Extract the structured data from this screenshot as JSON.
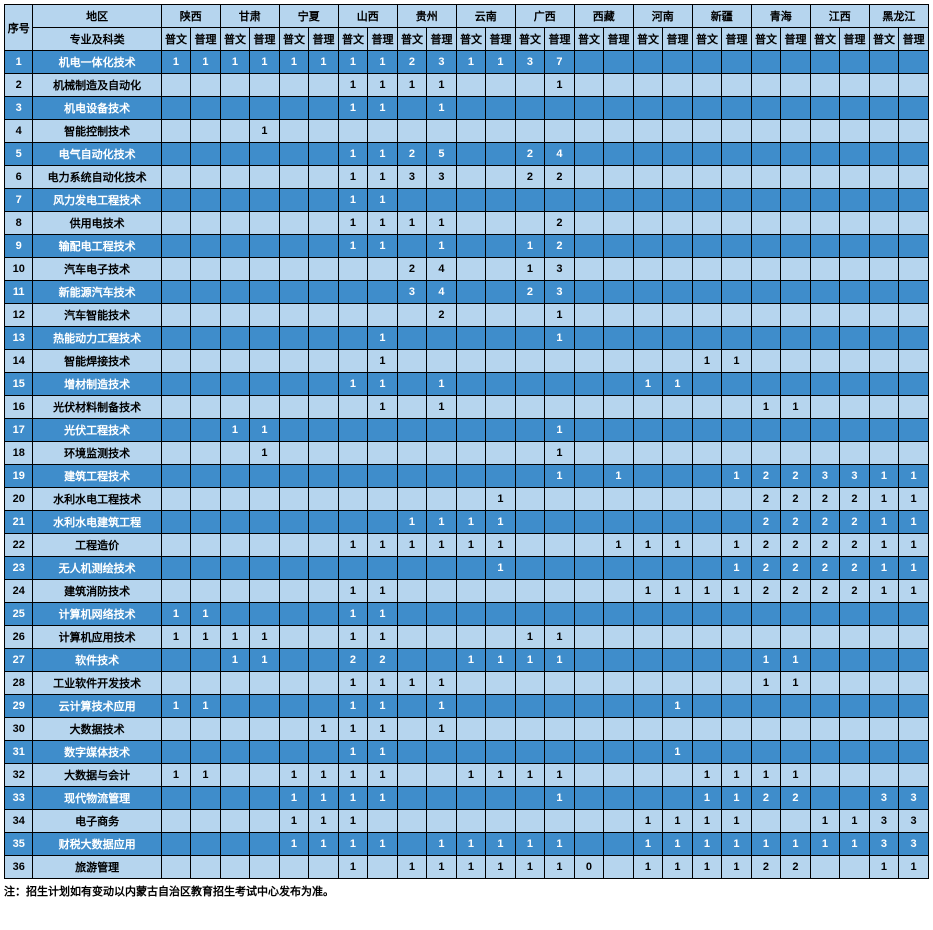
{
  "header": {
    "seq_label": "序号",
    "region_label": "地区",
    "major_label": "专业及科类",
    "sub_labels": [
      "普文",
      "普理"
    ],
    "regions": [
      "陕西",
      "甘肃",
      "宁夏",
      "山西",
      "贵州",
      "云南",
      "广西",
      "西藏",
      "河南",
      "新疆",
      "青海",
      "江西",
      "黑龙江"
    ]
  },
  "rows": [
    {
      "n": "1",
      "name": "机电一体化技术",
      "v": [
        "1",
        "1",
        "1",
        "1",
        "1",
        "1",
        "1",
        "1",
        "2",
        "3",
        "1",
        "1",
        "3",
        "7",
        "",
        "",
        "",
        "",
        "",
        "",
        "",
        "",
        "",
        "",
        "",
        ""
      ]
    },
    {
      "n": "2",
      "name": "机械制造及自动化",
      "v": [
        "",
        "",
        "",
        "",
        "",
        "",
        "1",
        "1",
        "1",
        "1",
        "",
        "",
        "",
        "1",
        "",
        "",
        "",
        "",
        "",
        "",
        "",
        "",
        "",
        "",
        "",
        ""
      ]
    },
    {
      "n": "3",
      "name": "机电设备技术",
      "v": [
        "",
        "",
        "",
        "",
        "",
        "",
        "1",
        "1",
        "",
        "1",
        "",
        "",
        "",
        "",
        "",
        "",
        "",
        "",
        "",
        "",
        "",
        "",
        "",
        "",
        "",
        ""
      ]
    },
    {
      "n": "4",
      "name": "智能控制技术",
      "v": [
        "",
        "",
        "",
        "1",
        "",
        "",
        "",
        "",
        "",
        "",
        "",
        "",
        "",
        "",
        "",
        "",
        "",
        "",
        "",
        "",
        "",
        "",
        "",
        "",
        "",
        ""
      ]
    },
    {
      "n": "5",
      "name": "电气自动化技术",
      "v": [
        "",
        "",
        "",
        "",
        "",
        "",
        "1",
        "1",
        "2",
        "5",
        "",
        "",
        "2",
        "4",
        "",
        "",
        "",
        "",
        "",
        "",
        "",
        "",
        "",
        "",
        "",
        ""
      ]
    },
    {
      "n": "6",
      "name": "电力系统自动化技术",
      "v": [
        "",
        "",
        "",
        "",
        "",
        "",
        "1",
        "1",
        "3",
        "3",
        "",
        "",
        "2",
        "2",
        "",
        "",
        "",
        "",
        "",
        "",
        "",
        "",
        "",
        "",
        "",
        ""
      ]
    },
    {
      "n": "7",
      "name": "风力发电工程技术",
      "v": [
        "",
        "",
        "",
        "",
        "",
        "",
        "1",
        "1",
        "",
        "",
        "",
        "",
        "",
        "",
        "",
        "",
        "",
        "",
        "",
        "",
        "",
        "",
        "",
        "",
        "",
        ""
      ]
    },
    {
      "n": "8",
      "name": "供用电技术",
      "v": [
        "",
        "",
        "",
        "",
        "",
        "",
        "1",
        "1",
        "1",
        "1",
        "",
        "",
        "",
        "2",
        "",
        "",
        "",
        "",
        "",
        "",
        "",
        "",
        "",
        "",
        "",
        ""
      ]
    },
    {
      "n": "9",
      "name": "输配电工程技术",
      "v": [
        "",
        "",
        "",
        "",
        "",
        "",
        "1",
        "1",
        "",
        "1",
        "",
        "",
        "1",
        "2",
        "",
        "",
        "",
        "",
        "",
        "",
        "",
        "",
        "",
        "",
        "",
        ""
      ]
    },
    {
      "n": "10",
      "name": "汽车电子技术",
      "v": [
        "",
        "",
        "",
        "",
        "",
        "",
        "",
        "",
        "2",
        "4",
        "",
        "",
        "1",
        "3",
        "",
        "",
        "",
        "",
        "",
        "",
        "",
        "",
        "",
        "",
        "",
        ""
      ]
    },
    {
      "n": "11",
      "name": "新能源汽车技术",
      "v": [
        "",
        "",
        "",
        "",
        "",
        "",
        "",
        "",
        "3",
        "4",
        "",
        "",
        "2",
        "3",
        "",
        "",
        "",
        "",
        "",
        "",
        "",
        "",
        "",
        "",
        "",
        ""
      ]
    },
    {
      "n": "12",
      "name": "汽车智能技术",
      "v": [
        "",
        "",
        "",
        "",
        "",
        "",
        "",
        "",
        "",
        "2",
        "",
        "",
        "",
        "1",
        "",
        "",
        "",
        "",
        "",
        "",
        "",
        "",
        "",
        "",
        "",
        ""
      ]
    },
    {
      "n": "13",
      "name": "热能动力工程技术",
      "v": [
        "",
        "",
        "",
        "",
        "",
        "",
        "",
        "1",
        "",
        "",
        "",
        "",
        "",
        "1",
        "",
        "",
        "",
        "",
        "",
        "",
        "",
        "",
        "",
        "",
        "",
        ""
      ]
    },
    {
      "n": "14",
      "name": "智能焊接技术",
      "v": [
        "",
        "",
        "",
        "",
        "",
        "",
        "",
        "1",
        "",
        "",
        "",
        "",
        "",
        "",
        "",
        "",
        "",
        "",
        "1",
        "1",
        "",
        "",
        "",
        "",
        "",
        ""
      ]
    },
    {
      "n": "15",
      "name": "增材制造技术",
      "v": [
        "",
        "",
        "",
        "",
        "",
        "",
        "1",
        "1",
        "",
        "1",
        "",
        "",
        "",
        "",
        "",
        "",
        "1",
        "1",
        "",
        "",
        "",
        "",
        "",
        "",
        "",
        ""
      ]
    },
    {
      "n": "16",
      "name": "光伏材料制备技术",
      "v": [
        "",
        "",
        "",
        "",
        "",
        "",
        "",
        "1",
        "",
        "1",
        "",
        "",
        "",
        "",
        "",
        "",
        "",
        "",
        "",
        "",
        "1",
        "1",
        "",
        "",
        "",
        ""
      ]
    },
    {
      "n": "17",
      "name": "光伏工程技术",
      "v": [
        "",
        "",
        "1",
        "1",
        "",
        "",
        "",
        "",
        "",
        "",
        "",
        "",
        "",
        "1",
        "",
        "",
        "",
        "",
        "",
        "",
        "",
        "",
        "",
        "",
        "",
        ""
      ]
    },
    {
      "n": "18",
      "name": "环境监测技术",
      "v": [
        "",
        "",
        "",
        "1",
        "",
        "",
        "",
        "",
        "",
        "",
        "",
        "",
        "",
        "1",
        "",
        "",
        "",
        "",
        "",
        "",
        "",
        "",
        "",
        "",
        "",
        ""
      ]
    },
    {
      "n": "19",
      "name": "建筑工程技术",
      "v": [
        "",
        "",
        "",
        "",
        "",
        "",
        "",
        "",
        "",
        "",
        "",
        "",
        "",
        "1",
        "",
        "1",
        "",
        "",
        "",
        "1",
        "2",
        "2",
        "3",
        "3",
        "1",
        "1"
      ]
    },
    {
      "n": "20",
      "name": "水利水电工程技术",
      "v": [
        "",
        "",
        "",
        "",
        "",
        "",
        "",
        "",
        "",
        "",
        "",
        "1",
        "",
        "",
        "",
        "",
        "",
        "",
        "",
        "",
        "2",
        "2",
        "2",
        "2",
        "1",
        "1"
      ]
    },
    {
      "n": "21",
      "name": "水利水电建筑工程",
      "v": [
        "",
        "",
        "",
        "",
        "",
        "",
        "",
        "",
        "1",
        "1",
        "1",
        "1",
        "",
        "",
        "",
        "",
        "",
        "",
        "",
        "",
        "2",
        "2",
        "2",
        "2",
        "1",
        "1"
      ]
    },
    {
      "n": "22",
      "name": "工程造价",
      "v": [
        "",
        "",
        "",
        "",
        "",
        "",
        "1",
        "1",
        "1",
        "1",
        "1",
        "1",
        "",
        "",
        "",
        "1",
        "1",
        "1",
        "",
        "1",
        "2",
        "2",
        "2",
        "2",
        "1",
        "1"
      ]
    },
    {
      "n": "23",
      "name": "无人机测绘技术",
      "v": [
        "",
        "",
        "",
        "",
        "",
        "",
        "",
        "",
        "",
        "",
        "",
        "1",
        "",
        "",
        "",
        "",
        "",
        "",
        "",
        "1",
        "2",
        "2",
        "2",
        "2",
        "1",
        "1"
      ]
    },
    {
      "n": "24",
      "name": "建筑消防技术",
      "v": [
        "",
        "",
        "",
        "",
        "",
        "",
        "1",
        "1",
        "",
        "",
        "",
        "",
        "",
        "",
        "",
        "",
        "1",
        "1",
        "1",
        "1",
        "2",
        "2",
        "2",
        "2",
        "1",
        "1"
      ]
    },
    {
      "n": "25",
      "name": "计算机网络技术",
      "v": [
        "1",
        "1",
        "",
        "",
        "",
        "",
        "1",
        "1",
        "",
        "",
        "",
        "",
        "",
        "",
        "",
        "",
        "",
        "",
        "",
        "",
        "",
        "",
        "",
        "",
        "",
        ""
      ]
    },
    {
      "n": "26",
      "name": "计算机应用技术",
      "v": [
        "1",
        "1",
        "1",
        "1",
        "",
        "",
        "1",
        "1",
        "",
        "",
        "",
        "",
        "1",
        "1",
        "",
        "",
        "",
        "",
        "",
        "",
        "",
        "",
        "",
        "",
        "",
        ""
      ]
    },
    {
      "n": "27",
      "name": "软件技术",
      "v": [
        "",
        "",
        "1",
        "1",
        "",
        "",
        "2",
        "2",
        "",
        "",
        "1",
        "1",
        "1",
        "1",
        "",
        "",
        "",
        "",
        "",
        "",
        "1",
        "1",
        "",
        "",
        "",
        ""
      ]
    },
    {
      "n": "28",
      "name": "工业软件开发技术",
      "v": [
        "",
        "",
        "",
        "",
        "",
        "",
        "1",
        "1",
        "1",
        "1",
        "",
        "",
        "",
        "",
        "",
        "",
        "",
        "",
        "",
        "",
        "1",
        "1",
        "",
        "",
        "",
        ""
      ]
    },
    {
      "n": "29",
      "name": "云计算技术应用",
      "v": [
        "1",
        "1",
        "",
        "",
        "",
        "",
        "1",
        "1",
        "",
        "1",
        "",
        "",
        "",
        "",
        "",
        "",
        "",
        "1",
        "",
        "",
        "",
        "",
        "",
        "",
        "",
        ""
      ]
    },
    {
      "n": "30",
      "name": "大数据技术",
      "v": [
        "",
        "",
        "",
        "",
        "",
        "1",
        "1",
        "1",
        "",
        "1",
        "",
        "",
        "",
        "",
        "",
        "",
        "",
        "",
        "",
        "",
        "",
        "",
        "",
        "",
        "",
        ""
      ]
    },
    {
      "n": "31",
      "name": "数字媒体技术",
      "v": [
        "",
        "",
        "",
        "",
        "",
        "",
        "1",
        "1",
        "",
        "",
        "",
        "",
        "",
        "",
        "",
        "",
        "",
        "1",
        "",
        "",
        "",
        "",
        "",
        "",
        "",
        ""
      ]
    },
    {
      "n": "32",
      "name": "大数据与会计",
      "v": [
        "1",
        "1",
        "",
        "",
        "1",
        "1",
        "1",
        "1",
        "",
        "",
        "1",
        "1",
        "1",
        "1",
        "",
        "",
        "",
        "",
        "1",
        "1",
        "1",
        "1",
        "",
        "",
        "",
        ""
      ]
    },
    {
      "n": "33",
      "name": "现代物流管理",
      "v": [
        "",
        "",
        "",
        "",
        "1",
        "1",
        "1",
        "1",
        "",
        "",
        "",
        "",
        "",
        "1",
        "",
        "",
        "",
        "",
        "1",
        "1",
        "2",
        "2",
        "",
        "",
        "3",
        "3"
      ]
    },
    {
      "n": "34",
      "name": "电子商务",
      "v": [
        "",
        "",
        "",
        "",
        "1",
        "1",
        "1",
        "",
        "",
        "",
        "",
        "",
        "",
        "",
        "",
        "",
        "1",
        "1",
        "1",
        "1",
        "",
        "",
        "1",
        "1",
        "3",
        "3"
      ]
    },
    {
      "n": "35",
      "name": "财税大数据应用",
      "v": [
        "",
        "",
        "",
        "",
        "1",
        "1",
        "1",
        "1",
        "",
        "1",
        "1",
        "1",
        "1",
        "1",
        "",
        "",
        "1",
        "1",
        "1",
        "1",
        "1",
        "1",
        "1",
        "1",
        "3",
        "3"
      ]
    },
    {
      "n": "36",
      "name": "旅游管理",
      "v": [
        "",
        "",
        "",
        "",
        "",
        "",
        "1",
        "",
        "1",
        "1",
        "1",
        "1",
        "1",
        "1",
        "0",
        "",
        "1",
        "1",
        "1",
        "1",
        "2",
        "2",
        "",
        "",
        "1",
        "1"
      ]
    }
  ],
  "footnote": "注：招生计划如有变动以内蒙古自治区教育招生考试中心发布为准。",
  "colors": {
    "header_bg": "#b6d5ee",
    "row_even_bg": "#3f8dcb",
    "row_even_fg": "#ffffff",
    "row_odd_bg": "#b6d5ee",
    "row_odd_fg": "#000000",
    "border": "#000000",
    "font_size_pt": 11
  }
}
